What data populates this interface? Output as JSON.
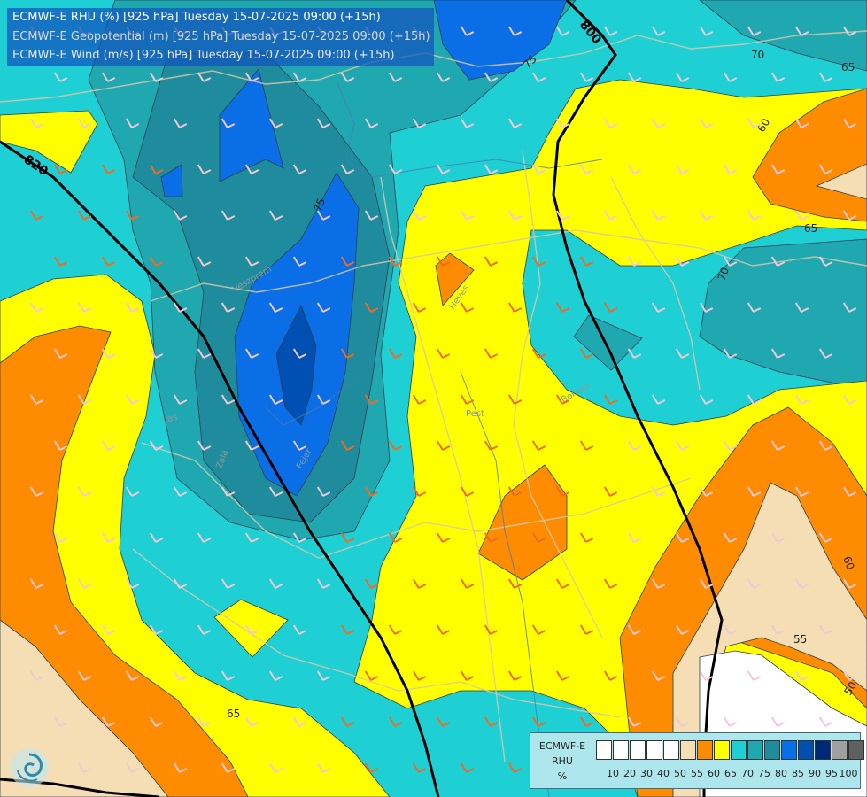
{
  "header": {
    "line1": "ECMWF-E RHU (%) [925 hPa] Tuesday 15-07-2025 09:00 (+15h)",
    "line2": "ECMWF-E Geopotential (m) [925 hPa] Tuesday 15-07-2025 09:00 (+15h)",
    "line3": "ECMWF-E Wind (m/s) [925 hPa] Tuesday 15-07-2025 09:00 (+15h)"
  },
  "legend": {
    "title_line1": "ECMWF-E",
    "title_line2": "RHU",
    "title_line3": "%",
    "swatches": [
      {
        "color": "#ffffff"
      },
      {
        "color": "#ffffff"
      },
      {
        "color": "#ffffff"
      },
      {
        "color": "#ffffff"
      },
      {
        "color": "#ffffff"
      },
      {
        "color": "#f5deb3"
      },
      {
        "color": "#ff8c00"
      },
      {
        "color": "#ffff00"
      },
      {
        "color": "#1ecfd4"
      },
      {
        "color": "#20a8b0"
      },
      {
        "color": "#1e8c9c"
      },
      {
        "color": "#0a6ee6"
      },
      {
        "color": "#0050b4"
      },
      {
        "color": "#002a78"
      },
      {
        "color": "#a0a0a0"
      },
      {
        "color": "#606060"
      }
    ],
    "ticks": [
      "10",
      "20",
      "30",
      "40",
      "50",
      "55",
      "60",
      "65",
      "70",
      "75",
      "80",
      "85",
      "90",
      "95",
      "100"
    ]
  },
  "map": {
    "geopotential_labels": [
      "820",
      "800"
    ],
    "rhu_labels": [
      "75",
      "70",
      "65",
      "60",
      "65",
      "70",
      "75",
      "60",
      "55",
      "50",
      "65"
    ],
    "place_labels": [
      "Heves",
      "Pest",
      "Borsod",
      "Vas",
      "Veszprem",
      "Fejer",
      "Zala"
    ]
  },
  "colors": {
    "white": "#ffffff",
    "wheat": "#f5deb3",
    "orange": "#ff8c00",
    "yellow": "#ffff00",
    "cyan": "#1ecfd4",
    "teal": "#20a8b0",
    "dark_teal": "#1e8c9c",
    "blue": "#0a6ee6",
    "deep_blue": "#0050b4"
  },
  "icons": {
    "logo": "ecmwf-swirl-logo"
  }
}
